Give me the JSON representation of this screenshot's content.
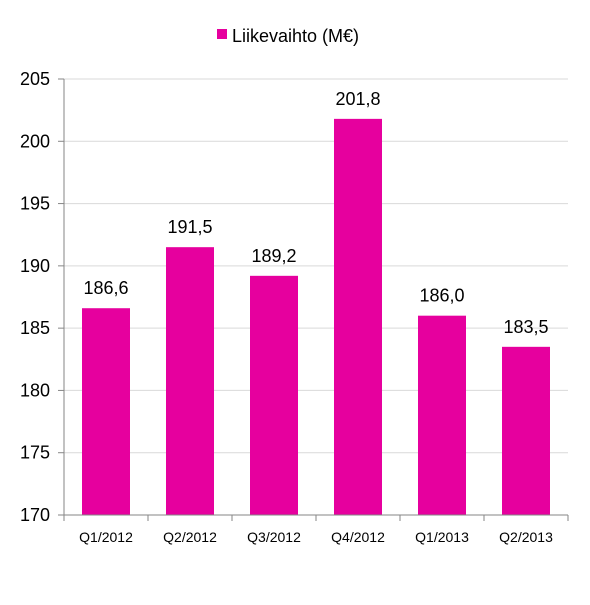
{
  "chart_data": {
    "type": "bar",
    "categories": [
      "Q1/2012",
      "Q2/2012",
      "Q3/2012",
      "Q4/2012",
      "Q1/2013",
      "Q2/2013"
    ],
    "series": [
      {
        "name": "Liikevaihto (M€)",
        "values": [
          186.6,
          191.5,
          189.2,
          201.8,
          186.0,
          183.5
        ],
        "data_labels": [
          "186,6",
          "191,5",
          "189,2",
          "201,8",
          "186,0",
          "183,5"
        ],
        "color": "#E6009E"
      }
    ],
    "ylim": [
      170,
      205
    ],
    "yticks": [
      170,
      175,
      180,
      185,
      190,
      195,
      200,
      205
    ],
    "grid": true,
    "legend": "top"
  }
}
